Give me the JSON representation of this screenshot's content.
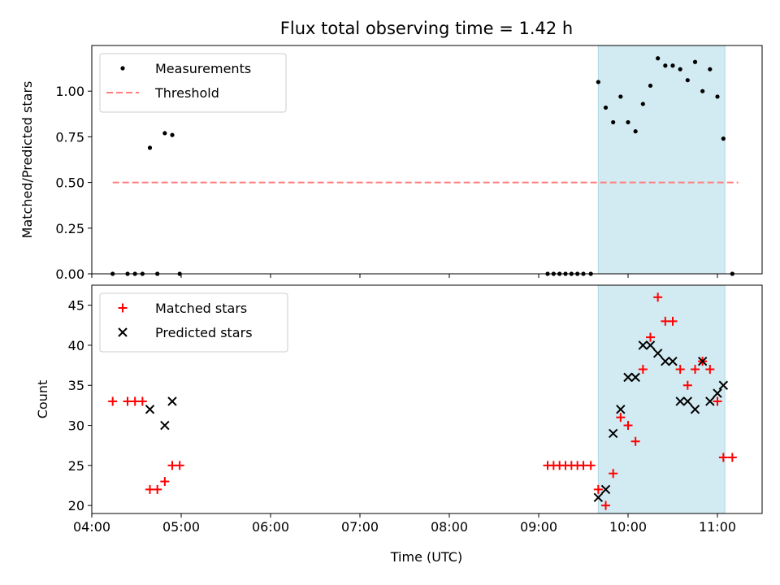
{
  "chart_data": [
    {
      "type": "scatter",
      "title": "Flux total observing time = 1.42 h",
      "xlabel": "",
      "ylabel": "Matched/Predicted stars",
      "xlim": [
        "04:00",
        "11:30"
      ],
      "ylim": [
        0,
        1.25
      ],
      "xticks": [
        "04:00",
        "05:00",
        "06:00",
        "07:00",
        "08:00",
        "09:00",
        "10:00",
        "11:00"
      ],
      "xtick_labels_shown": false,
      "yticks": [
        "0.00",
        "0.25",
        "0.50",
        "0.75",
        "1.00"
      ],
      "legend_position": "top-left",
      "shaded_interval": {
        "start": "09:40",
        "end": "11:05",
        "color": "#add8e6"
      },
      "series": [
        {
          "name": "Measurements",
          "marker": "dot",
          "color": "#000000",
          "points": [
            [
              "04:14",
              0.0
            ],
            [
              "04:24",
              0.0
            ],
            [
              "04:29",
              0.0
            ],
            [
              "04:34",
              0.0
            ],
            [
              "04:39",
              0.69
            ],
            [
              "04:44",
              0.0
            ],
            [
              "04:49",
              0.77
            ],
            [
              "04:54",
              0.76
            ],
            [
              "04:59",
              0.0
            ],
            [
              "09:06",
              0.0
            ],
            [
              "09:10",
              0.0
            ],
            [
              "09:14",
              0.0
            ],
            [
              "09:18",
              0.0
            ],
            [
              "09:22",
              0.0
            ],
            [
              "09:26",
              0.0
            ],
            [
              "09:30",
              0.0
            ],
            [
              "09:35",
              0.0
            ],
            [
              "09:40",
              1.05
            ],
            [
              "09:45",
              0.91
            ],
            [
              "09:50",
              0.83
            ],
            [
              "09:55",
              0.97
            ],
            [
              "10:00",
              0.83
            ],
            [
              "10:05",
              0.78
            ],
            [
              "10:10",
              0.93
            ],
            [
              "10:15",
              1.03
            ],
            [
              "10:20",
              1.18
            ],
            [
              "10:25",
              1.14
            ],
            [
              "10:30",
              1.14
            ],
            [
              "10:35",
              1.12
            ],
            [
              "10:40",
              1.06
            ],
            [
              "10:45",
              1.16
            ],
            [
              "10:50",
              1.0
            ],
            [
              "10:55",
              1.12
            ],
            [
              "11:00",
              0.97
            ],
            [
              "11:04",
              0.74
            ],
            [
              "11:10",
              0.0
            ]
          ]
        },
        {
          "name": "Threshold",
          "marker": "dashed-line",
          "color": "#ff7f7f",
          "points": [
            [
              "04:14",
              0.5
            ],
            [
              "11:14",
              0.5
            ]
          ]
        }
      ]
    },
    {
      "type": "scatter",
      "title": "",
      "xlabel": "Time (UTC)",
      "ylabel": "Count",
      "xlim": [
        "04:00",
        "11:30"
      ],
      "ylim": [
        19,
        47.5
      ],
      "xticks": [
        "04:00",
        "05:00",
        "06:00",
        "07:00",
        "08:00",
        "09:00",
        "10:00",
        "11:00"
      ],
      "xtick_labels_shown": true,
      "yticks": [
        "20",
        "25",
        "30",
        "35",
        "40",
        "45"
      ],
      "legend_position": "top-left",
      "shaded_interval": {
        "start": "09:40",
        "end": "11:05",
        "color": "#add8e6"
      },
      "series": [
        {
          "name": "Matched stars",
          "marker": "plus",
          "color": "#ff0000",
          "points": [
            [
              "04:14",
              33
            ],
            [
              "04:24",
              33
            ],
            [
              "04:29",
              33
            ],
            [
              "04:34",
              33
            ],
            [
              "04:39",
              22
            ],
            [
              "04:44",
              22
            ],
            [
              "04:49",
              23
            ],
            [
              "04:54",
              25
            ],
            [
              "04:59",
              25
            ],
            [
              "09:06",
              25
            ],
            [
              "09:10",
              25
            ],
            [
              "09:14",
              25
            ],
            [
              "09:18",
              25
            ],
            [
              "09:22",
              25
            ],
            [
              "09:26",
              25
            ],
            [
              "09:30",
              25
            ],
            [
              "09:35",
              25
            ],
            [
              "09:40",
              22
            ],
            [
              "09:45",
              20
            ],
            [
              "09:50",
              24
            ],
            [
              "09:55",
              31
            ],
            [
              "10:00",
              30
            ],
            [
              "10:05",
              28
            ],
            [
              "10:10",
              37
            ],
            [
              "10:15",
              41
            ],
            [
              "10:20",
              46
            ],
            [
              "10:25",
              43
            ],
            [
              "10:30",
              43
            ],
            [
              "10:35",
              37
            ],
            [
              "10:40",
              35
            ],
            [
              "10:45",
              37
            ],
            [
              "10:50",
              38
            ],
            [
              "10:55",
              37
            ],
            [
              "11:00",
              33
            ],
            [
              "11:04",
              26
            ],
            [
              "11:10",
              26
            ]
          ]
        },
        {
          "name": "Predicted stars",
          "marker": "x",
          "color": "#000000",
          "points": [
            [
              "04:39",
              32
            ],
            [
              "04:49",
              30
            ],
            [
              "04:54",
              33
            ],
            [
              "09:40",
              21
            ],
            [
              "09:45",
              22
            ],
            [
              "09:50",
              29
            ],
            [
              "09:55",
              32
            ],
            [
              "10:00",
              36
            ],
            [
              "10:05",
              36
            ],
            [
              "10:10",
              40
            ],
            [
              "10:15",
              40
            ],
            [
              "10:20",
              39
            ],
            [
              "10:25",
              38
            ],
            [
              "10:30",
              38
            ],
            [
              "10:35",
              33
            ],
            [
              "10:40",
              33
            ],
            [
              "10:45",
              32
            ],
            [
              "10:50",
              38
            ],
            [
              "10:55",
              33
            ],
            [
              "11:00",
              34
            ],
            [
              "11:04",
              35
            ]
          ]
        }
      ]
    }
  ]
}
